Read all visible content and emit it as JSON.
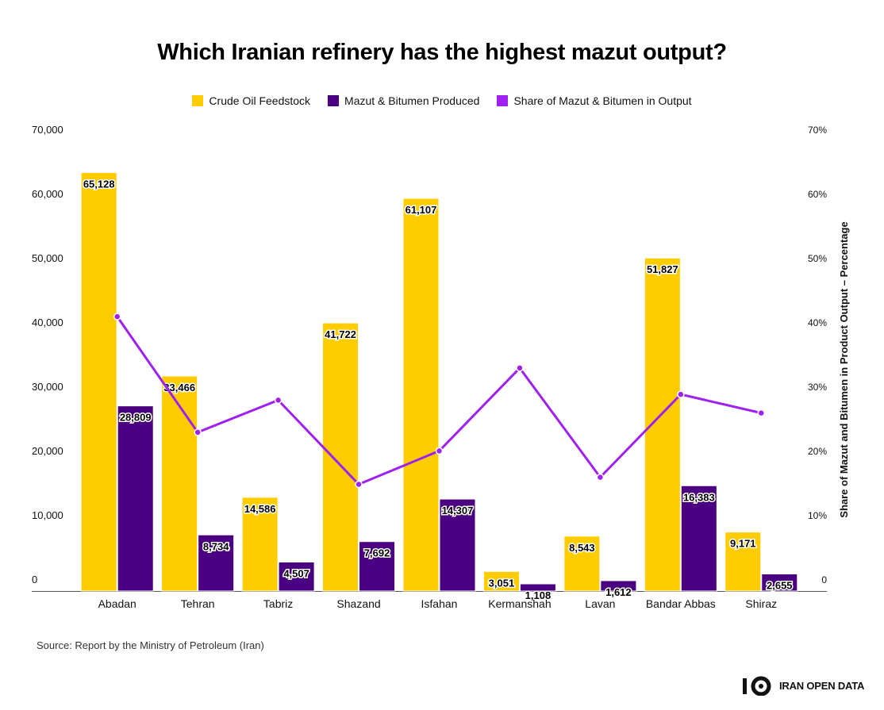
{
  "title": "Which Iranian refinery has the highest mazut output?",
  "source": "Source: Report by the Ministry of Petroleum (Iran)",
  "logo_text": "IRAN OPEN DATA",
  "colors": {
    "feedstock": "#FFCC00",
    "mazut": "#4B0082",
    "share": "#A020F0"
  },
  "chart_data": {
    "type": "bar",
    "categories": [
      "Abadan",
      "Tehran",
      "Tabriz",
      "Shazand",
      "Isfahan",
      "Kermanshah",
      "Lavan",
      "Bandar Abbas",
      "Shiraz"
    ],
    "series": [
      {
        "name": "Crude Oil Feedstock",
        "type": "bar",
        "axis": "left",
        "values": [
          65128,
          33466,
          14586,
          41722,
          61107,
          3051,
          8543,
          51827,
          9171
        ],
        "labels": [
          "65,128",
          "33,466",
          "14,586",
          "41,722",
          "61,107",
          "3,051",
          "8,543",
          "51,827",
          "9,171"
        ]
      },
      {
        "name": "Mazut & Bitumen Produced",
        "type": "bar",
        "axis": "left",
        "values": [
          28809,
          8734,
          4507,
          7692,
          14307,
          1108,
          1612,
          16383,
          2655
        ],
        "labels": [
          "28,809",
          "8,734",
          "4,507",
          "7,692",
          "14,307",
          "1,108",
          "1,612",
          "16,383",
          "2,655"
        ]
      },
      {
        "name": "Share of Mazut & Bitumen in Output",
        "type": "line",
        "axis": "right",
        "values": [
          42.7,
          24.7,
          29.7,
          16.6,
          21.8,
          34.7,
          17.7,
          30.6,
          27.7
        ]
      }
    ],
    "ylim": [
      0,
      70000
    ],
    "yticks": [
      "0",
      "10,000",
      "20,000",
      "30,000",
      "40,000",
      "50,000",
      "60,000",
      "70,000"
    ],
    "y2lim": [
      0,
      70
    ],
    "y2ticks": [
      "0",
      "10%",
      "20%",
      "30%",
      "40%",
      "50%",
      "60%",
      "70%"
    ],
    "y2label": "Share of Mazut and Bitumen in Product Output – Percentage",
    "xlabel": "",
    "ylabel": "",
    "legend_position": "top-center",
    "grid": false
  }
}
